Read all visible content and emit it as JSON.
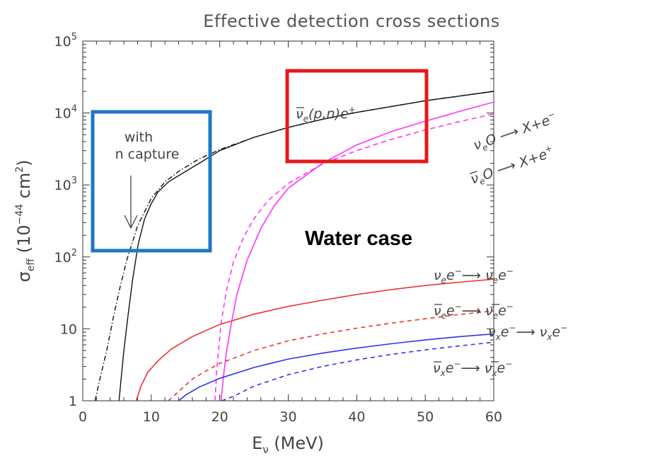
{
  "chart_data": {
    "type": "line",
    "title": "Effective detection cross sections",
    "xlabel_symbol": "E",
    "xlabel_sub": "ν",
    "xlabel_unit": "(MeV)",
    "ylabel_symbol": "σ",
    "ylabel_sub": "eff",
    "ylabel_unit_pre": "(10",
    "ylabel_unit_exp": "−44",
    "ylabel_unit_post": " cm",
    "ylabel_unit_exp2": "2",
    "ylabel_unit_close": ")",
    "xlim": [
      0,
      60
    ],
    "ylim": [
      1,
      100000
    ],
    "yscale": "log",
    "grid": false,
    "x_ticks": [
      "0",
      "10",
      "20",
      "30",
      "40",
      "50",
      "60"
    ],
    "y_ticks": [
      {
        "value": 1,
        "label": "1",
        "exp": ""
      },
      {
        "value": 10,
        "label": "10",
        "exp": ""
      },
      {
        "value": 100,
        "label": "10",
        "exp": "2"
      },
      {
        "value": 1000,
        "label": "10",
        "exp": "3"
      },
      {
        "value": 10000,
        "label": "10",
        "exp": "4"
      },
      {
        "value": 100000,
        "label": "10",
        "exp": "5"
      }
    ],
    "series": [
      {
        "key": "ibd_ncap",
        "color": "#111111",
        "dash": "7,3,1.5,3",
        "points": [
          [
            1.8,
            1
          ],
          [
            2.5,
            2
          ],
          [
            3.5,
            5
          ],
          [
            4.5,
            15
          ],
          [
            5.5,
            40
          ],
          [
            6.5,
            95
          ],
          [
            8,
            270
          ],
          [
            10,
            650
          ],
          [
            12,
            1100
          ],
          [
            14,
            1550
          ],
          [
            17,
            2300
          ],
          [
            20,
            3100
          ],
          [
            25,
            4600
          ],
          [
            30,
            6300
          ],
          [
            35,
            8200
          ],
          [
            40,
            10200
          ],
          [
            50,
            14800
          ],
          [
            60,
            20000
          ]
        ]
      },
      {
        "key": "ibd",
        "color": "#111111",
        "dash": "",
        "points": [
          [
            5.3,
            1
          ],
          [
            5.6,
            2
          ],
          [
            6,
            5
          ],
          [
            6.6,
            15
          ],
          [
            7.3,
            50
          ],
          [
            8.1,
            150
          ],
          [
            9,
            330
          ],
          [
            10,
            550
          ],
          [
            11,
            800
          ],
          [
            12.5,
            1100
          ],
          [
            14,
            1350
          ],
          [
            17,
            2000
          ],
          [
            20,
            3000
          ],
          [
            25,
            4600
          ],
          [
            30,
            6300
          ],
          [
            35,
            8200
          ],
          [
            40,
            10200
          ],
          [
            50,
            14800
          ],
          [
            60,
            20000
          ]
        ]
      },
      {
        "key": "nue_O",
        "color": "#ff33ff",
        "dash": "",
        "points": [
          [
            20.2,
            1
          ],
          [
            20.5,
            2
          ],
          [
            21,
            5
          ],
          [
            21.7,
            12
          ],
          [
            22.5,
            30
          ],
          [
            24,
            90
          ],
          [
            26,
            250
          ],
          [
            28,
            520
          ],
          [
            30,
            900
          ],
          [
            35,
            2000
          ],
          [
            40,
            3600
          ],
          [
            45,
            5500
          ],
          [
            50,
            7700
          ],
          [
            55,
            10500
          ],
          [
            60,
            14200
          ]
        ]
      },
      {
        "key": "nuebar_O",
        "color": "#ff33ff",
        "dash": "7,5",
        "points": [
          [
            19.3,
            1
          ],
          [
            19.6,
            3
          ],
          [
            20.2,
            12
          ],
          [
            21,
            35
          ],
          [
            22,
            85
          ],
          [
            23.5,
            190
          ],
          [
            25,
            340
          ],
          [
            27,
            600
          ],
          [
            30,
            1050
          ],
          [
            35,
            1950
          ],
          [
            40,
            3000
          ],
          [
            45,
            4300
          ],
          [
            50,
            5800
          ],
          [
            55,
            7600
          ],
          [
            60,
            9700
          ]
        ]
      },
      {
        "key": "nue_e",
        "color": "#ee3333",
        "dash": "",
        "points": [
          [
            7.8,
            1
          ],
          [
            8.5,
            1.6
          ],
          [
            9.5,
            2.5
          ],
          [
            11,
            3.6
          ],
          [
            13,
            5.3
          ],
          [
            16,
            7.8
          ],
          [
            20,
            11.5
          ],
          [
            25,
            16
          ],
          [
            30,
            20.5
          ],
          [
            35,
            25
          ],
          [
            40,
            30
          ],
          [
            45,
            35
          ],
          [
            50,
            40
          ],
          [
            55,
            44.5
          ],
          [
            60,
            49
          ]
        ]
      },
      {
        "key": "nuebar_e",
        "color": "#ee3333",
        "dash": "6,5",
        "points": [
          [
            12.5,
            1
          ],
          [
            14,
            1.35
          ],
          [
            16,
            2
          ],
          [
            18,
            2.6
          ],
          [
            20,
            3.3
          ],
          [
            25,
            5
          ],
          [
            30,
            6.8
          ],
          [
            35,
            8.5
          ],
          [
            40,
            10.2
          ],
          [
            45,
            12
          ],
          [
            50,
            13.8
          ],
          [
            55,
            15.8
          ],
          [
            60,
            17.8
          ]
        ]
      },
      {
        "key": "nux_e",
        "color": "#3333ee",
        "dash": "",
        "points": [
          [
            14,
            1
          ],
          [
            15,
            1.2
          ],
          [
            17,
            1.55
          ],
          [
            20,
            2.05
          ],
          [
            25,
            2.9
          ],
          [
            30,
            3.8
          ],
          [
            35,
            4.6
          ],
          [
            40,
            5.4
          ],
          [
            45,
            6.2
          ],
          [
            50,
            7
          ],
          [
            55,
            7.8
          ],
          [
            60,
            8.5
          ]
        ]
      },
      {
        "key": "nuxbar_e",
        "color": "#3333ee",
        "dash": "6,5",
        "points": [
          [
            20.3,
            1
          ],
          [
            22,
            1.15
          ],
          [
            25,
            1.6
          ],
          [
            30,
            2.3
          ],
          [
            35,
            3
          ],
          [
            40,
            3.7
          ],
          [
            45,
            4.4
          ],
          [
            50,
            5.1
          ],
          [
            55,
            5.8
          ],
          [
            60,
            6.5
          ]
        ]
      }
    ],
    "curve_labels": {
      "ibd": {
        "nu": "ν",
        "flav": "e",
        "rest": "(p,n)e",
        "sup": "+"
      },
      "nue_O": {
        "nu": "ν",
        "flav": "e",
        "rest": "O ⟶ X+e",
        "sup": "−"
      },
      "nuebar_O": {
        "nu": "ν",
        "flav": "e",
        "rest": "O ⟶ X+e",
        "sup": "+"
      },
      "nue_e": {
        "nu": "ν",
        "flav": "e",
        "mid": "e",
        "midsup": "−",
        "arrow": "⟶ ",
        "nu2": "ν",
        "flav2": "e",
        "end": "e",
        "endsup": "−"
      },
      "nuebar_e": {
        "nu": "ν",
        "flav": "e",
        "mid": "e",
        "midsup": "−",
        "arrow": "⟶ ",
        "nu2": "ν",
        "flav2": "e",
        "end": "e",
        "endsup": "−"
      },
      "nux_e": {
        "nu": "ν",
        "flav": "x",
        "mid": "e",
        "midsup": "−",
        "arrow": "⟶ ",
        "nu2": "ν",
        "flav2": "x",
        "end": "e",
        "endsup": "−"
      },
      "nuxbar_e": {
        "nu": "ν",
        "flav": "x",
        "mid": "e",
        "midsup": "−",
        "arrow": "⟶ ",
        "nu2": "ν",
        "flav2": "x",
        "end": "e",
        "endsup": "−"
      }
    },
    "annotations": {
      "ncap_line1": "with",
      "ncap_line2": "n capture",
      "water_case": "Water case"
    },
    "highlight_boxes": [
      {
        "key": "ncap_box",
        "color": "#1f77c8"
      },
      {
        "key": "ibd_box",
        "color": "#e61919"
      }
    ]
  }
}
